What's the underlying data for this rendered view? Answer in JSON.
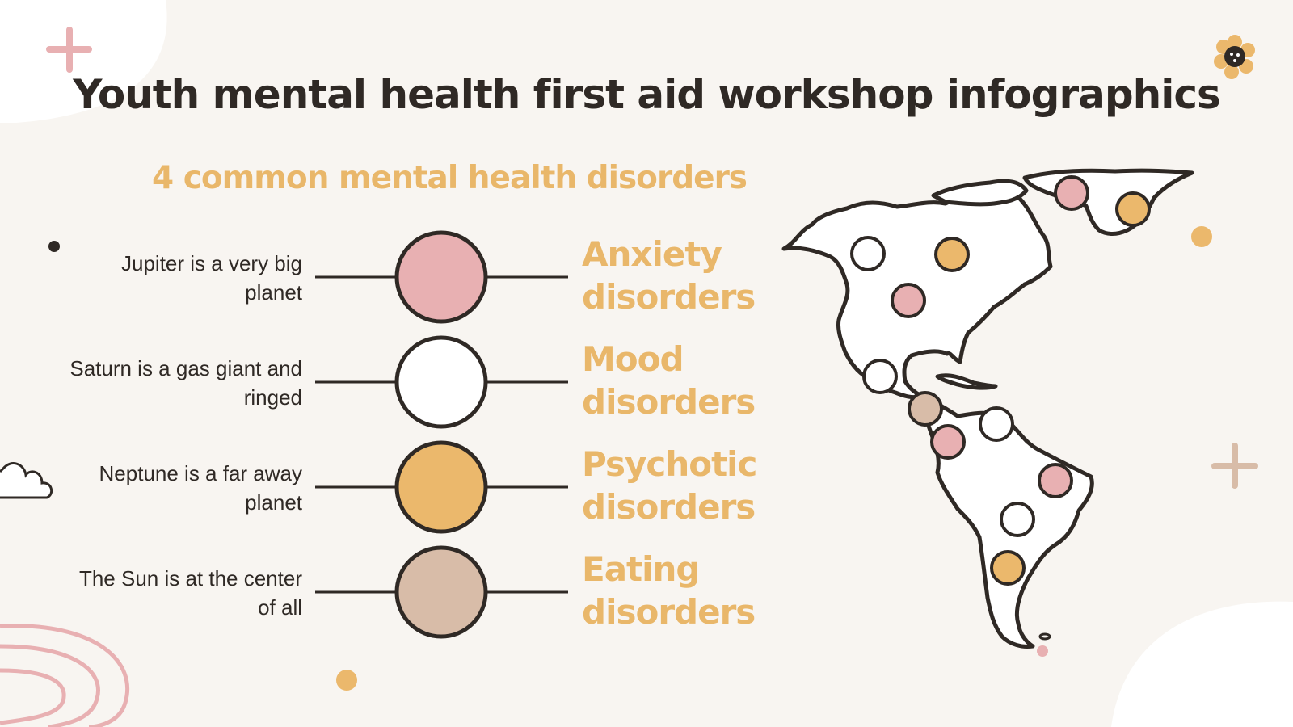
{
  "title": "Youth mental health first aid workshop infographics",
  "subtitle": "4 common mental health disorders",
  "items": [
    {
      "description": "Jupiter is a very big planet",
      "category_line1": "Anxiety",
      "category_line2": "disorders",
      "color": "#e8b0b2"
    },
    {
      "description": "Saturn is a gas giant and ringed",
      "category_line1": "Mood",
      "category_line2": "disorders",
      "color": "#ffffff"
    },
    {
      "description": "Neptune is a far away planet",
      "category_line1": "Psychotic",
      "category_line2": "disorders",
      "color": "#ebb86c"
    },
    {
      "description": "The Sun is at the center of all",
      "category_line1": "Eating",
      "category_line2": "disorders",
      "color": "#d8bca8"
    }
  ],
  "colors": {
    "background": "#f8f5f1",
    "text": "#2f2925",
    "accent": "#e9b76a",
    "pink": "#e8b0b2",
    "tan": "#d8bca8"
  },
  "map": {
    "name": "americas-map",
    "marker_colors": [
      "#ffffff",
      "#ebb86c",
      "#e8b0b2",
      "#e8b0b2",
      "#ebb86c",
      "#ffffff",
      "#d8bca8",
      "#e8b0b2",
      "#ffffff",
      "#e8b0b2",
      "#ffffff",
      "#ebb86c"
    ]
  }
}
